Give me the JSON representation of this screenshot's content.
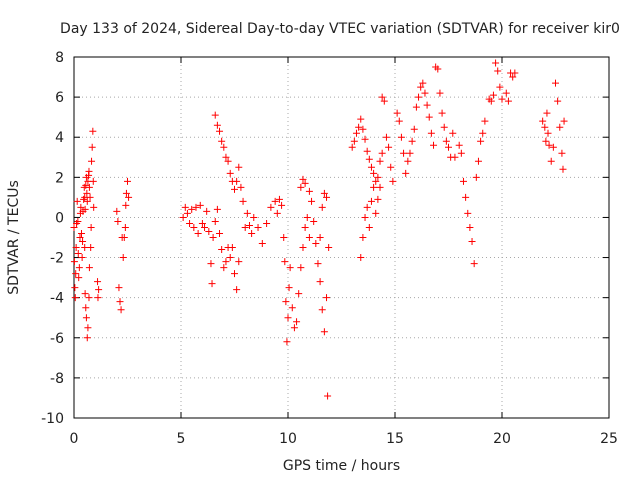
{
  "chart_data": {
    "type": "scatter",
    "title": "Day 133 of 2024, Sidereal Day-to-day VTEC variation (SDTVAR) for receiver kir0",
    "xlabel": "GPS time / hours",
    "ylabel": "SDTVAR / TECUs",
    "xlim": [
      0,
      25
    ],
    "ylim": [
      -10,
      8
    ],
    "x_ticks": [
      0,
      5,
      10,
      15,
      20,
      25
    ],
    "y_ticks": [
      -10,
      -8,
      -6,
      -4,
      -2,
      0,
      2,
      4,
      6,
      8
    ],
    "x_tick_labels": [
      "0",
      "5",
      "10",
      "15",
      "20",
      "25"
    ],
    "y_tick_labels": [
      "-10",
      "-8",
      "-6",
      "-4",
      "-2",
      "0",
      "2",
      "4",
      "6",
      "8"
    ],
    "grid": true,
    "marker": "+",
    "marker_color": "#ff0000",
    "series": [
      {
        "name": "kir0",
        "points": [
          [
            0.0,
            -0.5
          ],
          [
            0.02,
            -2.2
          ],
          [
            0.04,
            -3.5
          ],
          [
            0.06,
            -4.0
          ],
          [
            0.08,
            -2.8
          ],
          [
            0.1,
            -1.5
          ],
          [
            0.12,
            -0.3
          ],
          [
            0.15,
            0.8
          ],
          [
            0.18,
            -0.2
          ],
          [
            0.2,
            -1.8
          ],
          [
            0.22,
            -3.0
          ],
          [
            0.25,
            -2.5
          ],
          [
            0.28,
            -1.0
          ],
          [
            0.3,
            0.2
          ],
          [
            0.32,
            0.5
          ],
          [
            0.35,
            -0.8
          ],
          [
            0.38,
            -2.0
          ],
          [
            0.4,
            -1.2
          ],
          [
            0.42,
            0.3
          ],
          [
            0.45,
            0.9
          ],
          [
            0.48,
            1.5
          ],
          [
            0.5,
            1.0
          ],
          [
            0.52,
            0.4
          ],
          [
            0.55,
            1.6
          ],
          [
            0.58,
            2.0
          ],
          [
            0.6,
            1.2
          ],
          [
            0.62,
            0.8
          ],
          [
            0.65,
            1.8
          ],
          [
            0.68,
            2.1
          ],
          [
            0.7,
            2.3
          ],
          [
            0.72,
            1.5
          ],
          [
            0.75,
            1.0
          ],
          [
            0.5,
            -1.5
          ],
          [
            0.52,
            -3.8
          ],
          [
            0.55,
            -4.5
          ],
          [
            0.58,
            -5.0
          ],
          [
            0.62,
            -6.0
          ],
          [
            0.65,
            -5.5
          ],
          [
            0.7,
            -4.0
          ],
          [
            0.72,
            -2.5
          ],
          [
            0.78,
            -1.5
          ],
          [
            0.8,
            -0.5
          ],
          [
            0.82,
            2.8
          ],
          [
            0.85,
            3.5
          ],
          [
            0.88,
            4.3
          ],
          [
            0.9,
            1.8
          ],
          [
            0.92,
            0.5
          ],
          [
            1.1,
            -3.2
          ],
          [
            1.12,
            -4.0
          ],
          [
            1.15,
            -3.6
          ],
          [
            2.0,
            0.3
          ],
          [
            2.05,
            -0.2
          ],
          [
            2.1,
            -3.5
          ],
          [
            2.15,
            -4.2
          ],
          [
            2.2,
            -4.6
          ],
          [
            2.25,
            -1.0
          ],
          [
            2.3,
            -2.0
          ],
          [
            2.35,
            -1.0
          ],
          [
            2.4,
            -0.5
          ],
          [
            2.42,
            0.6
          ],
          [
            2.45,
            1.2
          ],
          [
            2.5,
            1.8
          ],
          [
            2.55,
            1.0
          ],
          [
            5.1,
            0.0
          ],
          [
            5.2,
            0.5
          ],
          [
            5.3,
            0.2
          ],
          [
            5.4,
            -0.3
          ],
          [
            5.5,
            0.4
          ],
          [
            5.6,
            -0.5
          ],
          [
            5.7,
            0.5
          ],
          [
            5.8,
            -0.8
          ],
          [
            5.9,
            0.6
          ],
          [
            6.0,
            -0.3
          ],
          [
            6.1,
            -0.5
          ],
          [
            6.2,
            0.3
          ],
          [
            6.3,
            -0.7
          ],
          [
            6.4,
            -2.3
          ],
          [
            6.45,
            -3.3
          ],
          [
            6.5,
            -1.0
          ],
          [
            6.6,
            -0.2
          ],
          [
            6.7,
            0.4
          ],
          [
            6.8,
            -0.8
          ],
          [
            6.9,
            -1.6
          ],
          [
            7.0,
            -2.5
          ],
          [
            7.1,
            -2.2
          ],
          [
            7.2,
            -1.5
          ],
          [
            7.3,
            -2.0
          ],
          [
            7.4,
            -1.5
          ],
          [
            7.5,
            -2.8
          ],
          [
            7.6,
            -3.6
          ],
          [
            7.7,
            -2.2
          ],
          [
            6.6,
            5.1
          ],
          [
            6.7,
            4.6
          ],
          [
            6.8,
            4.3
          ],
          [
            6.9,
            3.8
          ],
          [
            7.0,
            3.5
          ],
          [
            7.1,
            3.0
          ],
          [
            7.2,
            2.8
          ],
          [
            7.3,
            2.2
          ],
          [
            7.4,
            1.8
          ],
          [
            7.5,
            1.4
          ],
          [
            7.6,
            1.8
          ],
          [
            7.7,
            2.5
          ],
          [
            7.8,
            1.5
          ],
          [
            7.9,
            0.8
          ],
          [
            8.0,
            -0.5
          ],
          [
            8.1,
            0.2
          ],
          [
            8.2,
            -0.4
          ],
          [
            8.3,
            -0.8
          ],
          [
            8.4,
            0.0
          ],
          [
            8.6,
            -0.5
          ],
          [
            8.8,
            -1.3
          ],
          [
            9.0,
            -0.3
          ],
          [
            9.2,
            0.5
          ],
          [
            9.4,
            0.8
          ],
          [
            9.5,
            0.2
          ],
          [
            9.6,
            0.9
          ],
          [
            9.7,
            0.6
          ],
          [
            9.8,
            -1.0
          ],
          [
            9.85,
            -2.2
          ],
          [
            9.9,
            -4.2
          ],
          [
            9.95,
            -6.2
          ],
          [
            10.0,
            -5.0
          ],
          [
            10.05,
            -3.5
          ],
          [
            10.1,
            -2.5
          ],
          [
            10.2,
            -4.5
          ],
          [
            10.3,
            -5.5
          ],
          [
            10.4,
            -5.2
          ],
          [
            10.5,
            -3.8
          ],
          [
            10.6,
            -2.5
          ],
          [
            10.7,
            -1.5
          ],
          [
            10.8,
            -0.5
          ],
          [
            10.9,
            0.0
          ],
          [
            11.0,
            -1.0
          ],
          [
            10.6,
            1.5
          ],
          [
            10.7,
            1.9
          ],
          [
            10.8,
            1.7
          ],
          [
            11.0,
            1.3
          ],
          [
            11.1,
            0.8
          ],
          [
            11.2,
            -0.2
          ],
          [
            11.3,
            -1.3
          ],
          [
            11.4,
            -2.3
          ],
          [
            11.5,
            -3.2
          ],
          [
            11.6,
            -4.6
          ],
          [
            11.7,
            -5.7
          ],
          [
            11.8,
            -4.0
          ],
          [
            11.9,
            -1.5
          ],
          [
            11.5,
            -1.0
          ],
          [
            11.6,
            0.5
          ],
          [
            11.7,
            1.2
          ],
          [
            11.8,
            1.0
          ],
          [
            11.85,
            -8.9
          ],
          [
            13.0,
            3.5
          ],
          [
            13.1,
            3.8
          ],
          [
            13.2,
            4.2
          ],
          [
            13.3,
            4.5
          ],
          [
            13.4,
            4.9
          ],
          [
            13.5,
            4.4
          ],
          [
            13.6,
            3.9
          ],
          [
            13.7,
            3.3
          ],
          [
            13.8,
            2.9
          ],
          [
            13.9,
            2.5
          ],
          [
            14.0,
            2.2
          ],
          [
            14.1,
            1.8
          ],
          [
            14.2,
            2.0
          ],
          [
            14.3,
            2.8
          ],
          [
            14.4,
            3.2
          ],
          [
            13.4,
            -2.0
          ],
          [
            13.5,
            -1.0
          ],
          [
            13.6,
            0.0
          ],
          [
            13.7,
            0.5
          ],
          [
            13.8,
            -0.5
          ],
          [
            13.9,
            0.8
          ],
          [
            14.0,
            1.5
          ],
          [
            14.1,
            0.2
          ],
          [
            14.2,
            0.9
          ],
          [
            14.3,
            1.5
          ],
          [
            14.4,
            6.0
          ],
          [
            14.5,
            5.8
          ],
          [
            14.6,
            4.0
          ],
          [
            14.7,
            3.5
          ],
          [
            14.8,
            2.5
          ],
          [
            14.9,
            1.8
          ],
          [
            15.1,
            5.2
          ],
          [
            15.2,
            4.8
          ],
          [
            15.3,
            4.0
          ],
          [
            15.4,
            3.2
          ],
          [
            15.5,
            2.2
          ],
          [
            15.6,
            2.8
          ],
          [
            15.7,
            3.2
          ],
          [
            15.8,
            3.8
          ],
          [
            15.9,
            4.4
          ],
          [
            16.0,
            5.5
          ],
          [
            16.1,
            6.0
          ],
          [
            16.2,
            6.5
          ],
          [
            16.3,
            6.7
          ],
          [
            16.4,
            6.2
          ],
          [
            16.5,
            5.6
          ],
          [
            16.6,
            5.0
          ],
          [
            16.7,
            4.2
          ],
          [
            16.8,
            3.6
          ],
          [
            16.9,
            7.5
          ],
          [
            17.0,
            7.4
          ],
          [
            17.1,
            6.2
          ],
          [
            17.2,
            5.2
          ],
          [
            17.3,
            4.5
          ],
          [
            17.4,
            3.8
          ],
          [
            17.5,
            3.5
          ],
          [
            17.6,
            3.0
          ],
          [
            17.7,
            4.2
          ],
          [
            17.8,
            3.0
          ],
          [
            18.0,
            3.6
          ],
          [
            18.1,
            3.2
          ],
          [
            18.2,
            1.8
          ],
          [
            18.3,
            1.0
          ],
          [
            18.4,
            0.2
          ],
          [
            18.5,
            -0.5
          ],
          [
            18.6,
            -1.2
          ],
          [
            18.7,
            -2.3
          ],
          [
            18.8,
            2.0
          ],
          [
            18.9,
            2.8
          ],
          [
            19.0,
            3.8
          ],
          [
            19.1,
            4.2
          ],
          [
            19.2,
            4.8
          ],
          [
            19.4,
            5.9
          ],
          [
            19.5,
            5.8
          ],
          [
            19.6,
            6.1
          ],
          [
            19.7,
            7.7
          ],
          [
            19.8,
            7.3
          ],
          [
            19.9,
            6.5
          ],
          [
            20.0,
            5.9
          ],
          [
            20.2,
            6.2
          ],
          [
            20.3,
            5.8
          ],
          [
            20.4,
            7.2
          ],
          [
            20.5,
            7.0
          ],
          [
            20.6,
            7.2
          ],
          [
            21.9,
            4.8
          ],
          [
            22.0,
            4.5
          ],
          [
            22.05,
            3.8
          ],
          [
            22.1,
            5.2
          ],
          [
            22.15,
            4.2
          ],
          [
            22.2,
            3.6
          ],
          [
            22.3,
            2.8
          ],
          [
            22.4,
            3.5
          ],
          [
            22.5,
            6.7
          ],
          [
            22.6,
            5.8
          ],
          [
            22.7,
            4.5
          ],
          [
            22.8,
            3.2
          ],
          [
            22.85,
            2.4
          ],
          [
            22.9,
            4.8
          ]
        ]
      }
    ]
  }
}
